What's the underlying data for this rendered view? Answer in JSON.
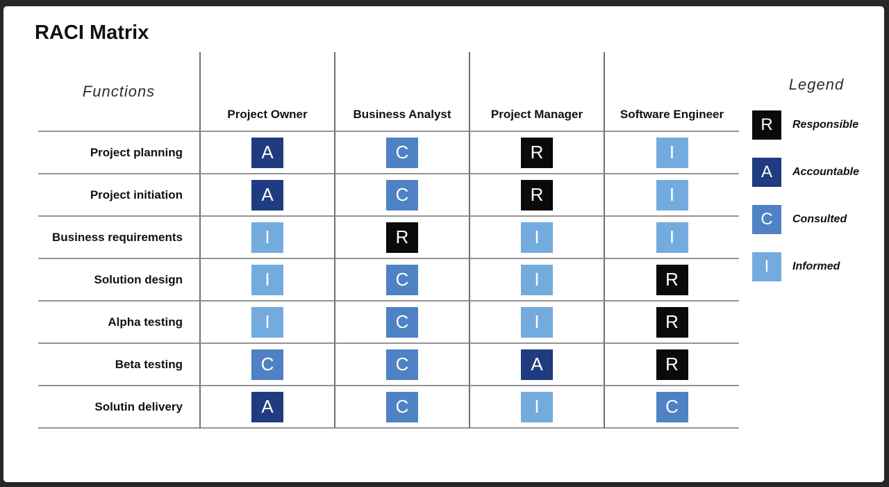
{
  "title": "RACI Matrix",
  "table": {
    "functions_header": "Functions",
    "columns": [
      "Project Owner",
      "Business Analyst",
      "Project Manager",
      "Software Engineer"
    ],
    "rows": [
      {
        "label": "Project planning",
        "cells": [
          "A",
          "C",
          "R",
          "I"
        ]
      },
      {
        "label": "Project initiation",
        "cells": [
          "A",
          "C",
          "R",
          "I"
        ]
      },
      {
        "label": "Business requirements",
        "cells": [
          "I",
          "R",
          "I",
          "I"
        ]
      },
      {
        "label": "Solution design",
        "cells": [
          "I",
          "C",
          "I",
          "R"
        ]
      },
      {
        "label": "Alpha testing",
        "cells": [
          "I",
          "C",
          "I",
          "R"
        ]
      },
      {
        "label": "Beta testing",
        "cells": [
          "C",
          "C",
          "A",
          "R"
        ]
      },
      {
        "label": "Solutin delivery",
        "cells": [
          "A",
          "C",
          "I",
          "C"
        ]
      }
    ]
  },
  "legend": {
    "title": "Legend",
    "items": [
      {
        "code": "R",
        "label": "Responsible"
      },
      {
        "code": "A",
        "label": "Accountable"
      },
      {
        "code": "C",
        "label": "Consulted"
      },
      {
        "code": "I",
        "label": "Informed"
      }
    ]
  },
  "colors": {
    "R": "#0a0a0a",
    "A": "#1e3c7f",
    "C": "#4e82c4",
    "I": "#74abde"
  }
}
